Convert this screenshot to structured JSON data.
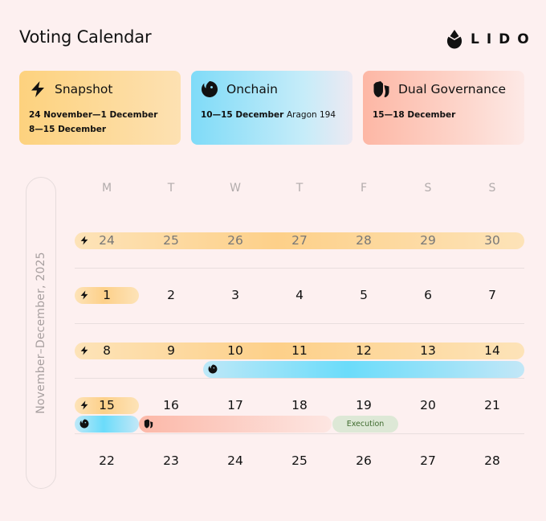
{
  "header": {
    "title": "Voting Calendar",
    "logo_text": "LIDO"
  },
  "cards": {
    "snapshot": {
      "title": "Snapshot",
      "line1": "24 November—1 December",
      "line2": "8—15 December",
      "icon": "lightning-icon"
    },
    "onchain": {
      "title": "Onchain",
      "dates": "10—15 December",
      "extra": "Aragon 194",
      "icon": "aragon-icon"
    },
    "dual": {
      "title": "Dual Governance",
      "dates": "15—18 December",
      "icon": "shield-icon"
    }
  },
  "calendar": {
    "period_label": "November–December, 2025",
    "weekdays": [
      "M",
      "T",
      "W",
      "T",
      "F",
      "S",
      "S"
    ],
    "weeks": [
      [
        "24",
        "25",
        "26",
        "27",
        "28",
        "29",
        "30"
      ],
      [
        "1",
        "2",
        "3",
        "4",
        "5",
        "6",
        "7"
      ],
      [
        "8",
        "9",
        "10",
        "11",
        "12",
        "13",
        "14"
      ],
      [
        "15",
        "16",
        "17",
        "18",
        "19",
        "20",
        "21"
      ],
      [
        "22",
        "23",
        "24",
        "25",
        "26",
        "27",
        "28"
      ]
    ],
    "execution_label": "Execution"
  },
  "colors": {
    "background": "#fdf0f0",
    "snapshot": "#fdd089",
    "onchain": "#6bdcfa",
    "dual_governance": "#fcb8a8",
    "execution": "#dde8d6"
  }
}
